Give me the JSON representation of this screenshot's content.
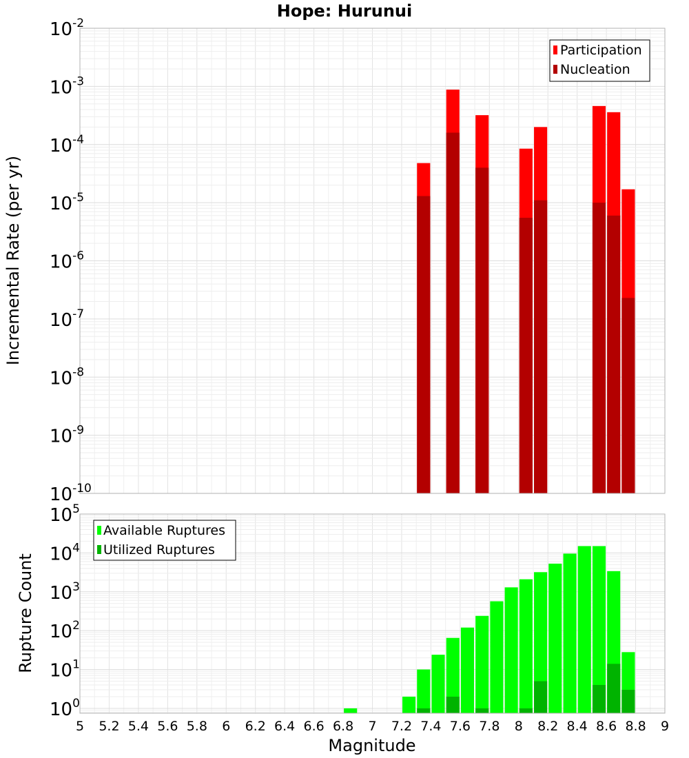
{
  "chart_data": [
    {
      "type": "bar",
      "title": "Hope: Hurunui",
      "xlabel": "",
      "ylabel": "Incremental Rate (per yr)",
      "yscale": "log",
      "ylim": [
        1e-10,
        0.01
      ],
      "xlim": [
        5,
        9
      ],
      "grid": true,
      "legend_position": "top-right",
      "series": [
        {
          "name": "Participation",
          "color": "#ff0000",
          "x": [
            7.35,
            7.55,
            7.75,
            8.05,
            8.15,
            8.55,
            8.65,
            8.75
          ],
          "values": [
            4.8e-05,
            0.00088,
            0.00032,
            8.5e-05,
            0.0002,
            0.00046,
            0.00036,
            1.7e-05
          ]
        },
        {
          "name": "Nucleation",
          "color": "#b30000",
          "x": [
            7.35,
            7.55,
            7.75,
            8.05,
            8.15,
            8.55,
            8.65,
            8.75
          ],
          "values": [
            1.3e-05,
            0.00016,
            4e-05,
            5.5e-06,
            1.1e-05,
            1e-05,
            6e-06,
            2.3e-07
          ]
        }
      ],
      "ytick_exponents": [
        -10,
        -9,
        -8,
        -7,
        -6,
        -5,
        -4,
        -3,
        -2
      ]
    },
    {
      "type": "bar",
      "title": "",
      "xlabel": "Magnitude",
      "ylabel": "Rupture Count",
      "yscale": "log",
      "ylim": [
        0.75,
        100000.0
      ],
      "xlim": [
        5,
        9
      ],
      "grid": true,
      "legend_position": "top-left",
      "series": [
        {
          "name": "Available Ruptures",
          "color": "#00ff00",
          "x": [
            6.85,
            7.25,
            7.35,
            7.45,
            7.55,
            7.65,
            7.75,
            7.85,
            7.95,
            8.05,
            8.15,
            8.25,
            8.35,
            8.45,
            8.55,
            8.65,
            8.75
          ],
          "values": [
            1,
            2,
            10,
            24,
            65,
            120,
            240,
            570,
            1300,
            2100,
            3200,
            5300,
            9600,
            15000,
            15000,
            3400,
            28
          ]
        },
        {
          "name": "Utilized Ruptures",
          "color": "#00b300",
          "x": [
            7.35,
            7.55,
            7.75,
            8.05,
            8.15,
            8.55,
            8.65,
            8.75
          ],
          "values": [
            1,
            2,
            1,
            1,
            5,
            4,
            14,
            3
          ]
        }
      ],
      "ytick_exponents": [
        0,
        1,
        2,
        3,
        4,
        5
      ],
      "xticks": [
        "5",
        "5.2",
        "5.4",
        "5.6",
        "5.8",
        "6",
        "6.2",
        "6.4",
        "6.6",
        "6.8",
        "7",
        "7.2",
        "7.4",
        "7.6",
        "7.8",
        "8",
        "8.2",
        "8.4",
        "8.6",
        "8.8",
        "9"
      ]
    }
  ]
}
